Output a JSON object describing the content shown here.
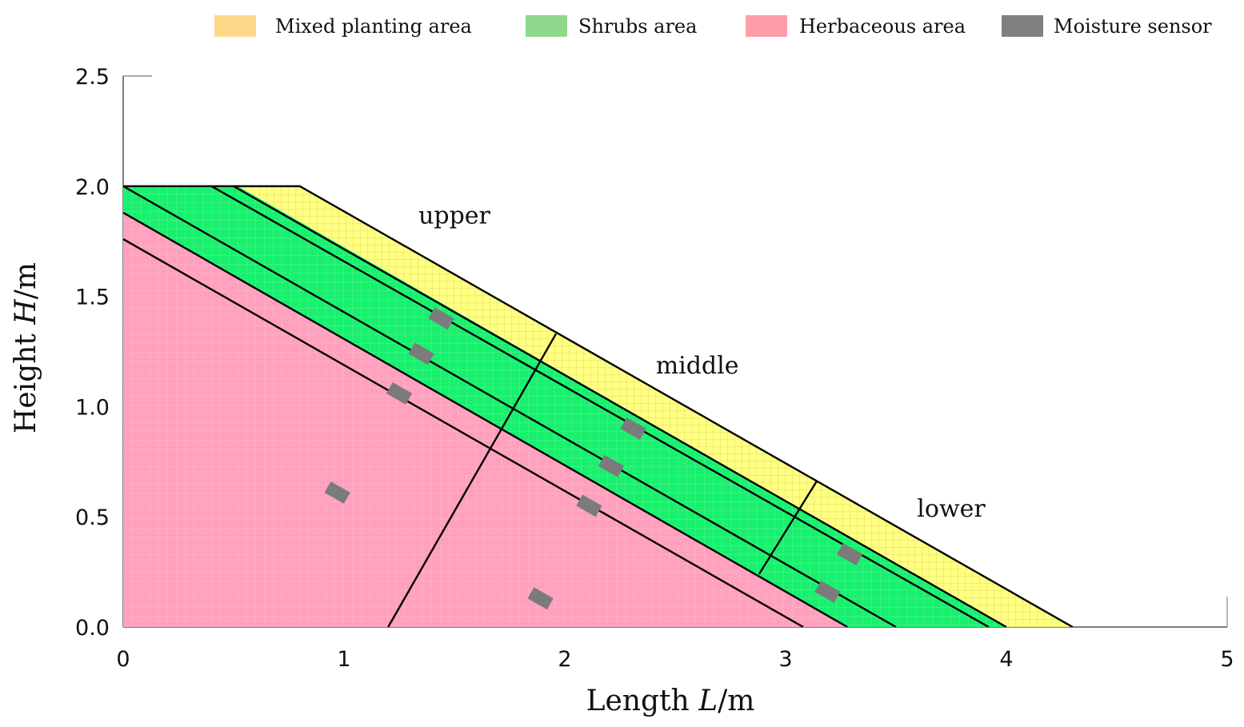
{
  "chart_data": {
    "type": "diagram",
    "xlabel": {
      "prefix": "Length ",
      "italic": "L",
      "suffix": "/m"
    },
    "ylabel": {
      "prefix": "Height ",
      "italic": "H",
      "suffix": "/m"
    },
    "xlim": [
      0,
      5
    ],
    "ylim": [
      0,
      2.5
    ],
    "xticks": [
      "0",
      "1",
      "2",
      "3",
      "4",
      "5"
    ],
    "yticks": [
      "0.0",
      "0.5",
      "1.0",
      "1.5",
      "2.0",
      "2.5"
    ],
    "legend_position": "top",
    "legend": [
      {
        "label": "Mixed planting area",
        "color": "#ffd98a"
      },
      {
        "label": "Shrubs area",
        "color": "#8fd98c"
      },
      {
        "label": "Herbaceous area",
        "color": "#ff9eab"
      },
      {
        "label": "Moisture sensor",
        "color": "#808080"
      }
    ],
    "fills": {
      "mixed": "#ffff82",
      "shrubs": "#18f06e",
      "herbaceous": "#ffa0bd",
      "sensor": "#7b7b7b"
    },
    "zones": [
      {
        "label": "upper",
        "anchor_x": 1.5,
        "anchor_y": 1.83
      },
      {
        "label": "middle",
        "anchor_x": 2.6,
        "anchor_y": 1.15
      },
      {
        "label": "lower",
        "anchor_x": 3.75,
        "anchor_y": 0.5
      }
    ],
    "slope_surface": [
      [
        0,
        2.0
      ],
      [
        0.8,
        2.0
      ],
      [
        4.3,
        0
      ]
    ],
    "regions": {
      "mixed": [
        [
          0.52,
          2.0
        ],
        [
          0.8,
          2.0
        ],
        [
          4.3,
          0
        ],
        [
          4.0,
          0
        ]
      ],
      "shrubs": [
        [
          0,
          2.0
        ],
        [
          0.52,
          2.0
        ],
        [
          4.0,
          0
        ],
        [
          3.28,
          0
        ],
        [
          0,
          1.88
        ]
      ],
      "herbaceous": [
        [
          0,
          1.88
        ],
        [
          3.28,
          0
        ],
        [
          0,
          0
        ]
      ]
    },
    "layer_lines": [
      [
        [
          0.4,
          2.0
        ],
        [
          3.92,
          0
        ]
      ],
      [
        [
          0.5,
          2.0
        ],
        [
          4.0,
          0
        ]
      ],
      [
        [
          0,
          2.0
        ],
        [
          3.5,
          0
        ]
      ],
      [
        [
          0,
          1.88
        ],
        [
          3.28,
          0
        ]
      ],
      [
        [
          0,
          1.76
        ],
        [
          3.08,
          0
        ]
      ]
    ],
    "section_lines": [
      [
        [
          1.96,
          1.33
        ],
        [
          1.2,
          0
        ]
      ],
      [
        [
          3.14,
          0.66
        ],
        [
          2.88,
          0.24
        ]
      ]
    ],
    "sensors": [
      [
        1.44,
        1.4
      ],
      [
        1.35,
        1.24
      ],
      [
        1.25,
        1.06
      ],
      [
        0.97,
        0.61
      ],
      [
        2.31,
        0.9
      ],
      [
        2.21,
        0.73
      ],
      [
        2.11,
        0.55
      ],
      [
        1.89,
        0.13
      ],
      [
        3.29,
        0.33
      ],
      [
        3.19,
        0.16
      ]
    ]
  }
}
